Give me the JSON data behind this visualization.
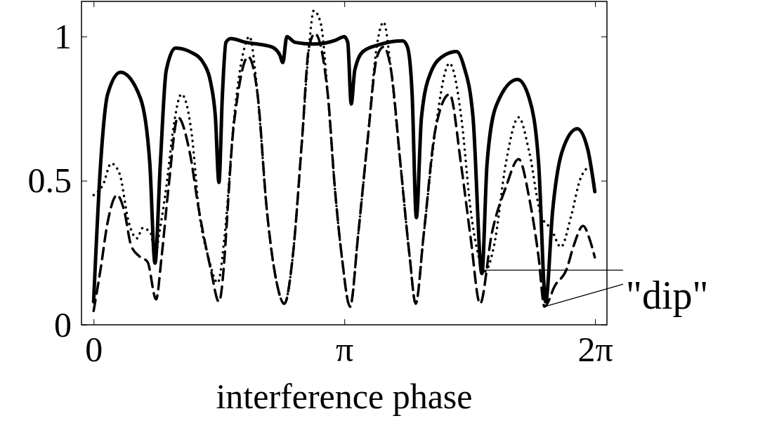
{
  "chart_data": {
    "type": "line",
    "xlabel": "interference phase",
    "xlim": [
      -0.152,
      6.432
    ],
    "ylim": [
      0,
      1.122
    ],
    "xticks": [
      0,
      {
        "value": 3.1416,
        "label": "π"
      },
      {
        "value": 6.2832,
        "label": "2π"
      }
    ],
    "yticks": [
      0,
      0.5,
      1
    ],
    "grid": false,
    "marker": "none",
    "annotations": [
      {
        "text": "\"dip\"",
        "x": 5.649,
        "y": 0.063
      }
    ],
    "series": [
      {
        "color": "#000000",
        "line_style": "solid",
        "x": [
          0,
          0.088,
          0.176,
          0.338,
          0.587,
          0.704,
          0.769,
          0.836,
          0.91,
          1.027,
          1.232,
          1.379,
          1.467,
          1.526,
          1.57,
          1.614,
          1.658,
          1.717,
          1.908,
          2.231,
          2.333,
          2.371,
          2.421,
          2.524,
          2.759,
          3.037,
          3.14,
          3.184,
          3.228,
          3.272,
          3.375,
          3.58,
          3.873,
          3.932,
          3.991,
          4.044,
          4.108,
          4.225,
          4.401,
          4.548,
          4.636,
          4.754,
          4.865,
          4.93,
          5.047,
          5.312,
          5.458,
          5.576,
          5.664,
          5.752,
          5.869,
          6.06,
          6.192,
          6.28
        ],
        "values": [
          0.08,
          0.56,
          0.8,
          0.876,
          0.786,
          0.56,
          0.214,
          0.56,
          0.883,
          0.96,
          0.944,
          0.907,
          0.84,
          0.72,
          0.494,
          0.8,
          0.98,
          0.993,
          0.98,
          0.964,
          0.936,
          0.91,
          1.0,
          0.98,
          0.974,
          0.988,
          1.0,
          0.98,
          0.766,
          0.883,
          0.948,
          0.972,
          0.985,
          0.964,
          0.8,
          0.372,
          0.72,
          0.876,
          0.936,
          0.948,
          0.9,
          0.72,
          0.178,
          0.56,
          0.762,
          0.851,
          0.786,
          0.56,
          0.08,
          0.397,
          0.6,
          0.68,
          0.608,
          0.462
        ]
      },
      {
        "color": "#000000",
        "line_style": "dotted",
        "x": [
          0,
          0.118,
          0.22,
          0.323,
          0.44,
          0.543,
          0.616,
          0.719,
          0.769,
          0.822,
          0.91,
          0.998,
          1.1,
          1.232,
          1.32,
          1.438,
          1.555,
          1.644,
          1.761,
          1.878,
          1.952,
          2.054,
          2.171,
          2.289,
          2.39,
          2.494,
          2.611,
          2.699,
          2.758,
          2.846,
          2.934,
          3.022,
          3.111,
          3.213,
          3.316,
          3.433,
          3.551,
          3.633,
          3.727,
          3.844,
          3.961,
          4.035,
          4.137,
          4.284,
          4.46,
          4.607,
          4.725,
          4.827,
          4.9,
          5.018,
          5.165,
          5.326,
          5.458,
          5.605,
          5.737,
          5.854,
          5.986,
          6.104,
          6.221,
          6.28
        ],
        "values": [
          0.45,
          0.486,
          0.56,
          0.526,
          0.356,
          0.3,
          0.336,
          0.316,
          0.234,
          0.316,
          0.477,
          0.68,
          0.8,
          0.656,
          0.397,
          0.234,
          0.146,
          0.316,
          0.72,
          0.948,
          1.0,
          0.8,
          0.397,
          0.153,
          0.073,
          0.234,
          0.64,
          0.964,
          1.09,
          1.046,
          0.8,
          0.477,
          0.234,
          0.063,
          0.316,
          0.64,
          0.972,
          1.05,
          0.883,
          0.56,
          0.234,
          0.073,
          0.316,
          0.68,
          0.907,
          0.72,
          0.397,
          0.234,
          0.185,
          0.275,
          0.56,
          0.72,
          0.6,
          0.38,
          0.331,
          0.27,
          0.38,
          0.51,
          0.547,
          0.477
        ]
      },
      {
        "color": "#000000",
        "line_style": "dashed",
        "x": [
          0,
          0.088,
          0.176,
          0.294,
          0.382,
          0.47,
          0.572,
          0.676,
          0.783,
          0.851,
          0.939,
          1.056,
          1.203,
          1.32,
          1.467,
          1.57,
          1.761,
          1.937,
          2.054,
          2.171,
          2.289,
          2.39,
          2.494,
          2.611,
          2.699,
          2.773,
          2.934,
          3.022,
          3.111,
          3.213,
          3.316,
          3.433,
          3.551,
          3.633,
          3.727,
          3.844,
          3.961,
          4.035,
          4.137,
          4.284,
          4.46,
          4.607,
          4.725,
          4.842,
          4.989,
          5.165,
          5.326,
          5.458,
          5.576,
          5.649,
          5.781,
          5.928,
          6.016,
          6.133,
          6.221,
          6.28
        ],
        "values": [
          0.048,
          0.194,
          0.356,
          0.45,
          0.397,
          0.275,
          0.238,
          0.218,
          0.088,
          0.234,
          0.477,
          0.72,
          0.6,
          0.397,
          0.194,
          0.08,
          0.705,
          0.93,
          0.8,
          0.397,
          0.153,
          0.073,
          0.234,
          0.64,
          0.964,
          1.01,
          0.8,
          0.477,
          0.234,
          0.063,
          0.316,
          0.64,
          0.93,
          0.964,
          0.883,
          0.56,
          0.234,
          0.073,
          0.316,
          0.68,
          0.8,
          0.55,
          0.3,
          0.073,
          0.316,
          0.477,
          0.575,
          0.44,
          0.234,
          0.063,
          0.136,
          0.194,
          0.275,
          0.343,
          0.292,
          0.234
        ]
      }
    ]
  }
}
